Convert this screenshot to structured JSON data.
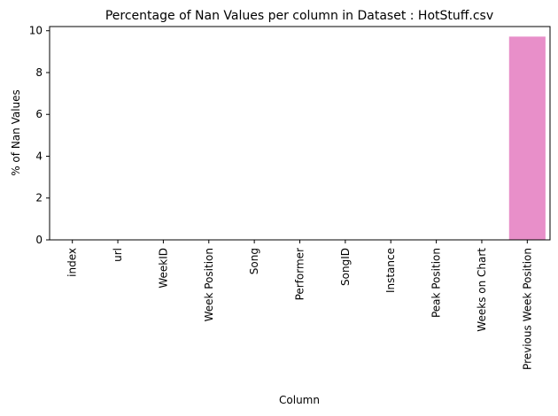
{
  "chart_data": {
    "type": "bar",
    "title": "Percentage of Nan Values per column in Dataset : HotStuff.csv",
    "xlabel": "Column",
    "ylabel": "% of Nan Values",
    "categories": [
      "index",
      "url",
      "WeekID",
      "Week Position",
      "Song",
      "Performer",
      "SongID",
      "Instance",
      "Peak Position",
      "Weeks on Chart",
      "Previous Week Position"
    ],
    "values": [
      0,
      0,
      0,
      0,
      0,
      0,
      0,
      0,
      0,
      0,
      9.72
    ],
    "ylim": [
      0,
      10.2
    ],
    "yticks": [
      0,
      2,
      4,
      6,
      8,
      10
    ],
    "grid": false,
    "legend": false,
    "colors": [
      "#1f77b4",
      "#ff7f0e",
      "#2ca02c",
      "#d62728",
      "#9467bd",
      "#8c564b",
      "#e377c2",
      "#7f7f7f",
      "#bcbd22",
      "#17becf",
      "#e88fc9"
    ]
  }
}
